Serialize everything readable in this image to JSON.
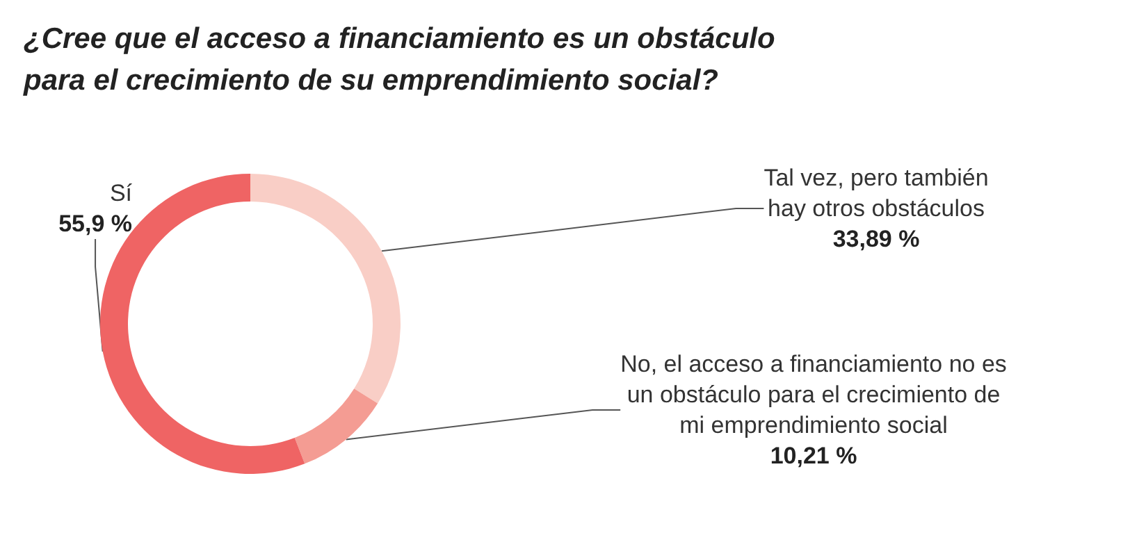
{
  "chart_data": {
    "type": "donut",
    "title": "¿Cree que el acceso a financiamiento es un obstáculo\npara el crecimiento de su emprendimiento social?",
    "categories": [
      "Tal vez, pero también\nhay otros obstáculos",
      "No, el acceso a financiamiento no es\nun obstáculo para el crecimiento de\nmi emprendimiento social",
      "Sí"
    ],
    "values": [
      33.89,
      10.21,
      55.9
    ],
    "value_labels": [
      "33,89 %",
      "10,21 %",
      "55,9 %"
    ],
    "colors": [
      "#f9cec6",
      "#f49c93",
      "#ef6464"
    ],
    "legend": false
  }
}
